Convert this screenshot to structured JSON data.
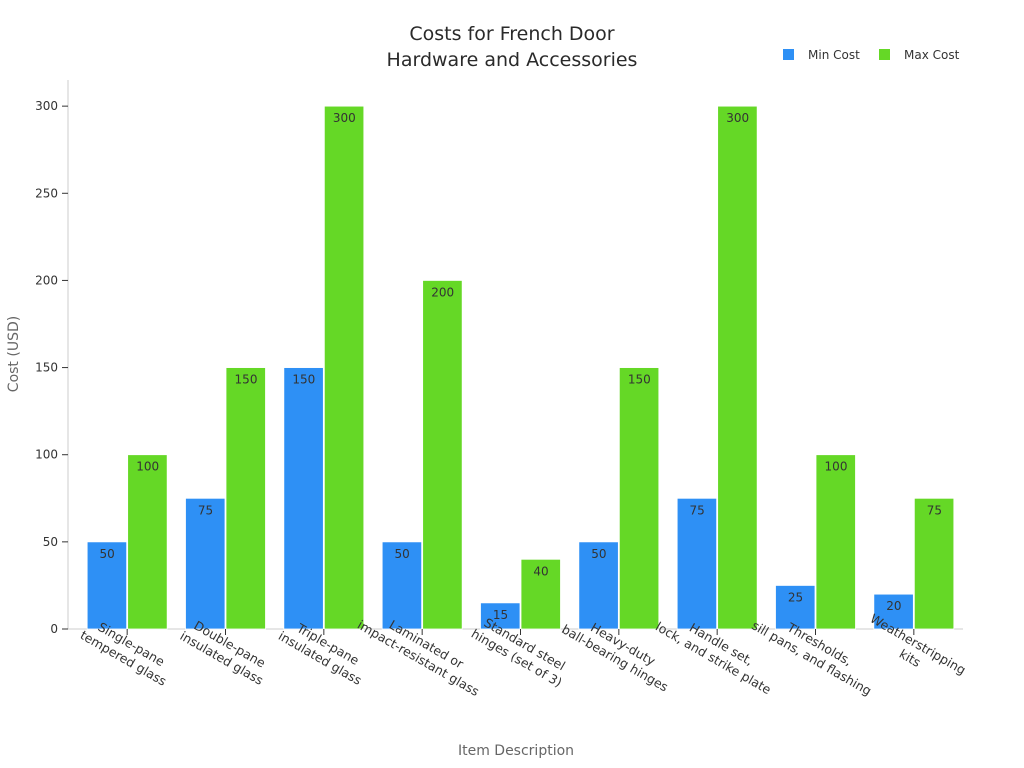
{
  "chart_data": {
    "type": "bar",
    "title_lines": [
      "Costs for French Door",
      "Hardware and Accessories"
    ],
    "xlabel": "Item Description",
    "ylabel": "Cost (USD)",
    "ylim": [
      0,
      315
    ],
    "yticks": [
      0,
      50,
      100,
      150,
      200,
      250,
      300
    ],
    "grid": false,
    "legend_position": "top-right",
    "categories": [
      [
        "Single-pane",
        "tempered glass"
      ],
      [
        "Double-pane",
        "insulated glass"
      ],
      [
        "Triple-pane",
        "insulated glass"
      ],
      [
        "Laminated or",
        "impact-resistant glass"
      ],
      [
        "Standard steel",
        "hinges (set of 3)"
      ],
      [
        "Heavy-duty",
        "ball-bearing hinges"
      ],
      [
        "Handle set,",
        "lock, and strike plate"
      ],
      [
        "Thresholds,",
        "sill pans, and flashing"
      ],
      [
        "Weatherstripping",
        "kits"
      ]
    ],
    "series": [
      {
        "name": "Min Cost",
        "color": "#2e90f5",
        "values": [
          50,
          75,
          150,
          50,
          15,
          50,
          75,
          25,
          20
        ]
      },
      {
        "name": "Max Cost",
        "color": "#65d826",
        "values": [
          100,
          150,
          300,
          200,
          40,
          150,
          300,
          100,
          75
        ]
      }
    ]
  }
}
